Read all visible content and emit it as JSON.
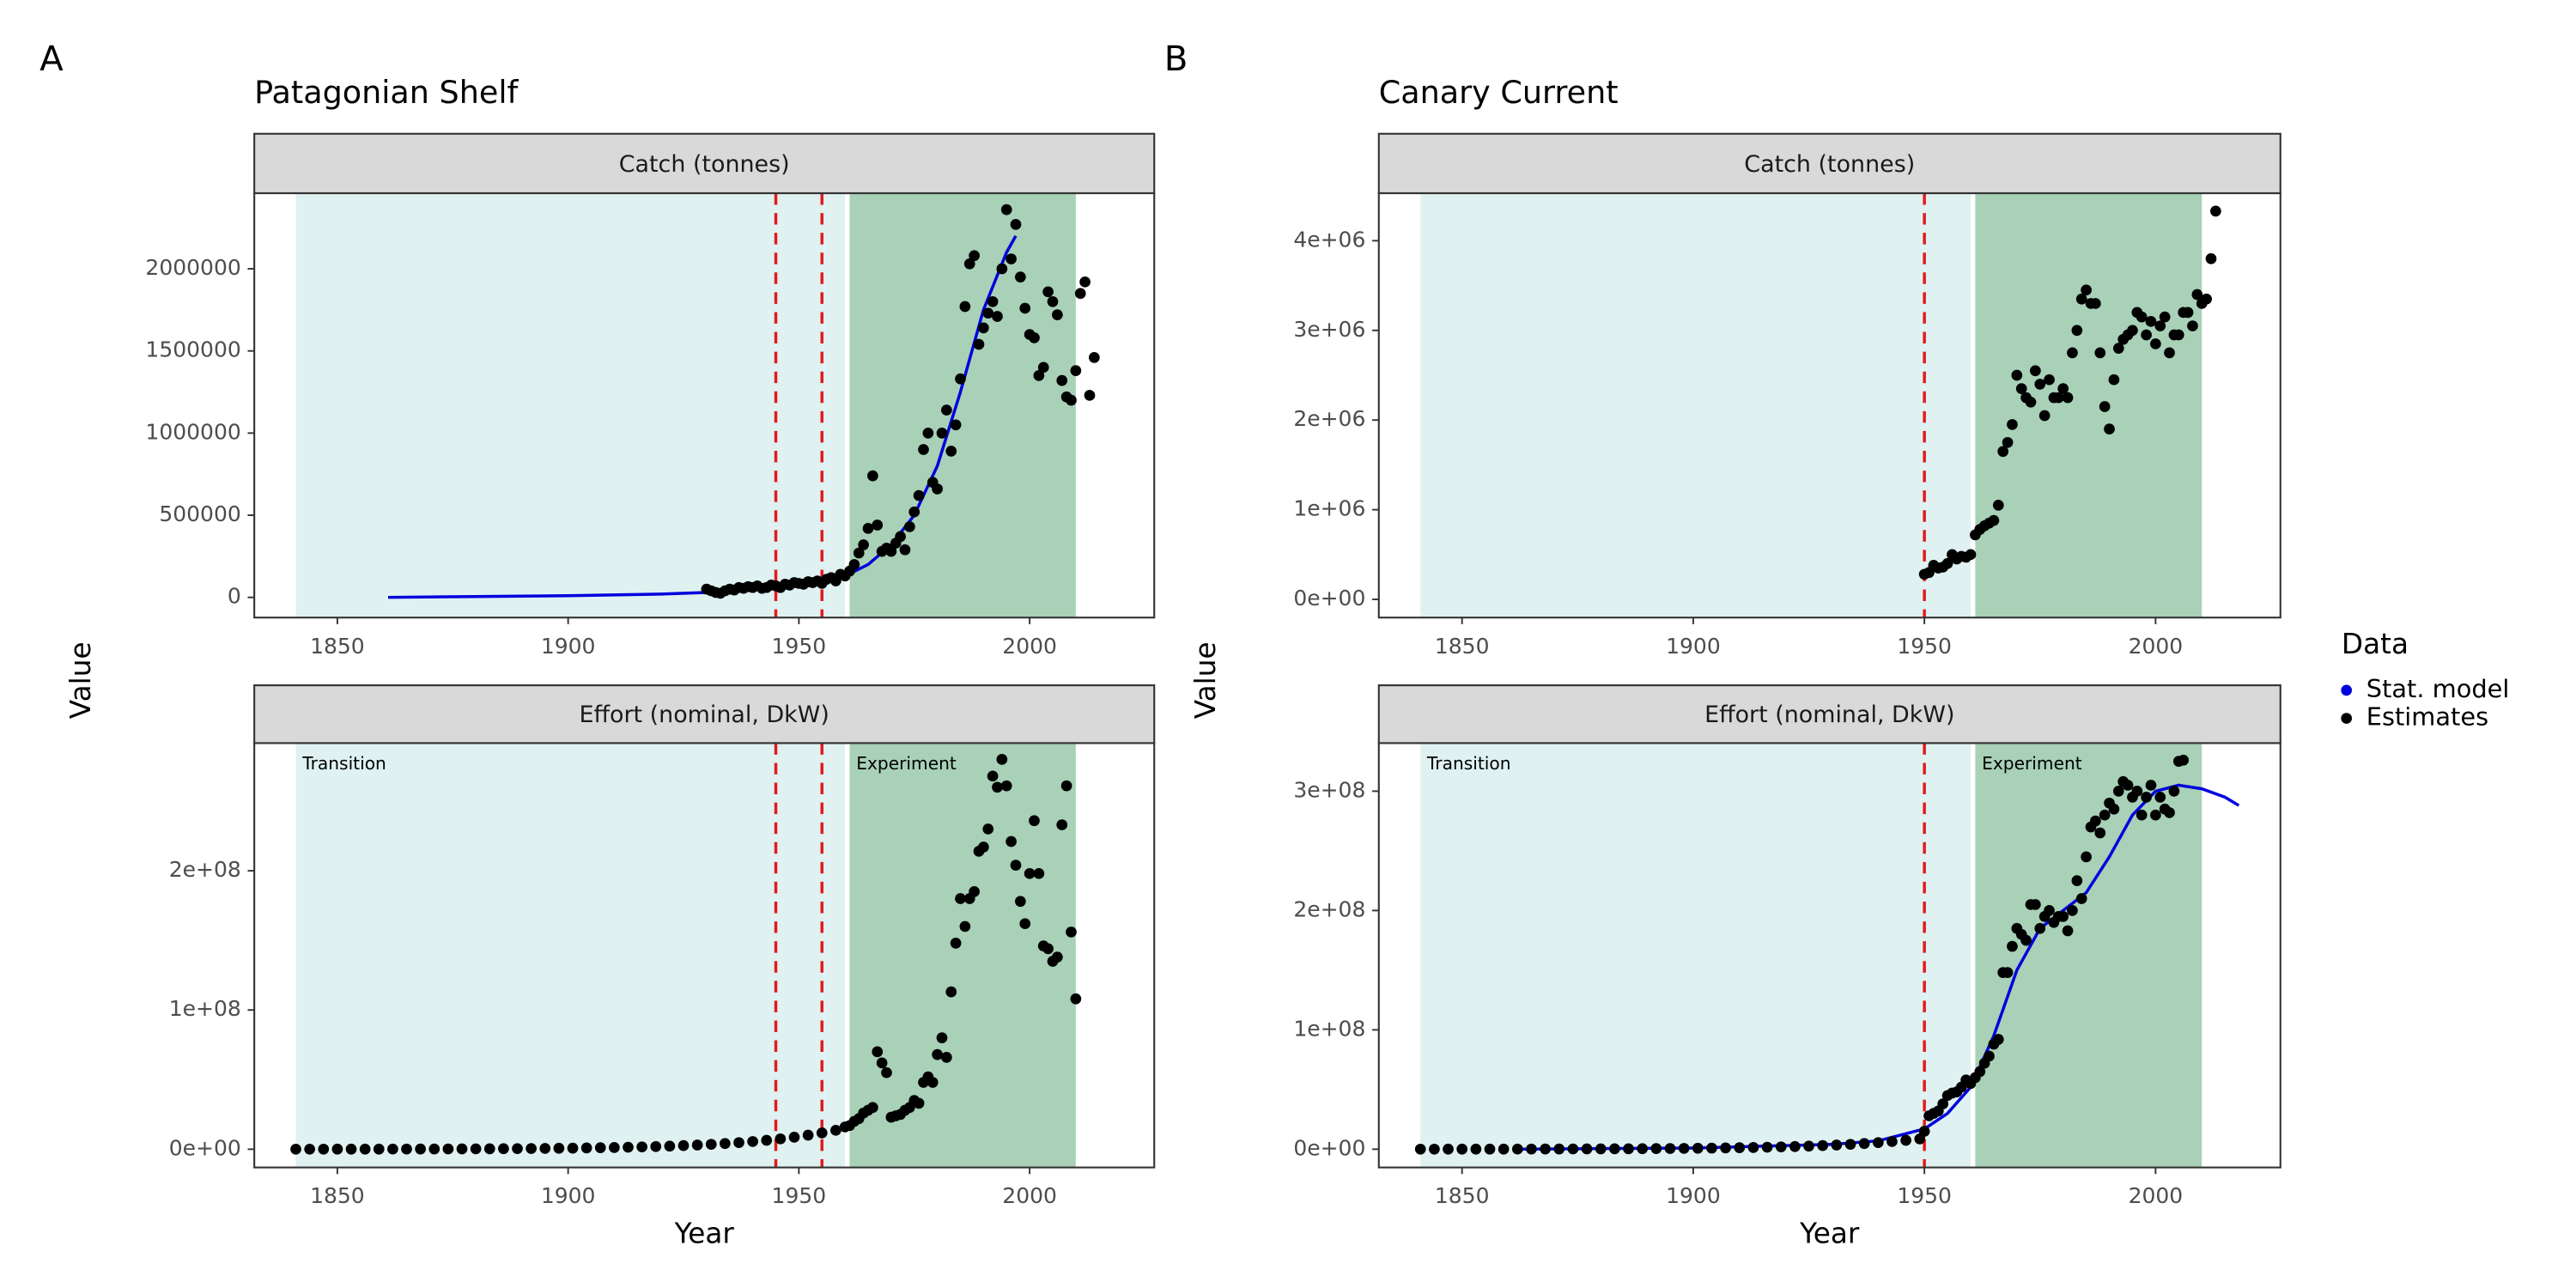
{
  "axis_labels": {
    "x": "Year",
    "y": "Value"
  },
  "legend": {
    "title": "Data",
    "entries": [
      {
        "name": "Stat. model",
        "color": "#0000dd"
      },
      {
        "name": "Estimates",
        "color": "#000000"
      }
    ]
  },
  "periods": [
    {
      "label": "Transition",
      "start": 1841,
      "end": 1960,
      "color": "#dff1f1"
    },
    {
      "label": "Experiment",
      "start": 1961,
      "end": 2010,
      "color": "#a8d1b7"
    }
  ],
  "vline_color": "#e31a1c",
  "chart_data": [
    {
      "type": "scatter",
      "panel": "A",
      "title": "Patagonian Shelf",
      "strip": "Catch (tonnes)",
      "xlim": [
        1832,
        2027
      ],
      "xticks": [
        1850,
        1900,
        1950,
        2000
      ],
      "ylim": [
        -123000,
        2460000
      ],
      "yticks": [
        0,
        500000,
        1000000,
        1500000,
        2000000
      ],
      "vlines": [
        1945,
        1955
      ],
      "model": {
        "x": [
          1861,
          1880,
          1900,
          1920,
          1930,
          1940,
          1950,
          1955,
          1960,
          1965,
          1970,
          1975,
          1980,
          1985,
          1990,
          1995,
          1997
        ],
        "values": [
          0,
          5000,
          10000,
          20000,
          30000,
          45000,
          70000,
          90000,
          130000,
          200000,
          320000,
          500000,
          800000,
          1250000,
          1750000,
          2100000,
          2200000
        ]
      },
      "estimates": {
        "x": [
          1930,
          1931,
          1932,
          1933,
          1934,
          1935,
          1936,
          1937,
          1938,
          1939,
          1940,
          1941,
          1942,
          1943,
          1944,
          1945,
          1946,
          1947,
          1948,
          1949,
          1950,
          1951,
          1952,
          1953,
          1954,
          1955,
          1956,
          1957,
          1958,
          1959,
          1960,
          1961,
          1962,
          1963,
          1964,
          1965,
          1966,
          1967,
          1968,
          1969,
          1970,
          1971,
          1972,
          1973,
          1974,
          1975,
          1976,
          1977,
          1978,
          1979,
          1980,
          1981,
          1982,
          1983,
          1984,
          1985,
          1986,
          1987,
          1988,
          1989,
          1990,
          1991,
          1992,
          1993,
          1994,
          1995,
          1996,
          1997,
          1998,
          1999,
          2000,
          2001,
          2002,
          2003,
          2004,
          2005,
          2006,
          2007,
          2008,
          2009,
          2010,
          2011,
          2012,
          2013,
          2014
        ],
        "values": [
          50000,
          40000,
          30000,
          25000,
          40000,
          50000,
          45000,
          60000,
          55000,
          65000,
          60000,
          70000,
          55000,
          60000,
          75000,
          70000,
          60000,
          80000,
          75000,
          90000,
          85000,
          80000,
          95000,
          90000,
          100000,
          85000,
          110000,
          120000,
          100000,
          140000,
          130000,
          160000,
          200000,
          270000,
          320000,
          420000,
          740000,
          440000,
          280000,
          300000,
          280000,
          330000,
          370000,
          290000,
          430000,
          520000,
          620000,
          900000,
          1000000,
          700000,
          660000,
          1000000,
          1140000,
          890000,
          1050000,
          1330000,
          1770000,
          2030000,
          2080000,
          1540000,
          1640000,
          1730000,
          1800000,
          1710000,
          2000000,
          2360000,
          2060000,
          2270000,
          1950000,
          1760000,
          1600000,
          1580000,
          1350000,
          1400000,
          1860000,
          1800000,
          1720000,
          1320000,
          1220000,
          1200000,
          1380000,
          1850000,
          1920000,
          1230000,
          1460000
        ]
      }
    },
    {
      "type": "scatter",
      "strip": "Effort (nominal, DkW)",
      "xlim": [
        1832,
        2027
      ],
      "xticks": [
        1850,
        1900,
        1950,
        2000
      ],
      "ylim": [
        -13100000,
        291700000
      ],
      "yticks": [
        {
          "value": 0,
          "label": "0e+00"
        },
        {
          "value": 100000000,
          "label": "1e+08"
        },
        {
          "value": 200000000,
          "label": "2e+08"
        }
      ],
      "vlines": [
        1945,
        1955
      ],
      "estimates": {
        "x": [
          1841,
          1844,
          1847,
          1850,
          1853,
          1856,
          1859,
          1862,
          1865,
          1868,
          1871,
          1874,
          1877,
          1880,
          1883,
          1886,
          1889,
          1892,
          1895,
          1898,
          1901,
          1904,
          1907,
          1910,
          1913,
          1916,
          1919,
          1922,
          1925,
          1928,
          1931,
          1934,
          1937,
          1940,
          1943,
          1946,
          1949,
          1952,
          1955,
          1958,
          1960,
          1961,
          1962,
          1963,
          1964,
          1965,
          1966,
          1967,
          1968,
          1969,
          1970,
          1971,
          1972,
          1973,
          1974,
          1975,
          1976,
          1977,
          1978,
          1979,
          1980,
          1981,
          1982,
          1983,
          1984,
          1985,
          1986,
          1987,
          1988,
          1989,
          1990,
          1991,
          1992,
          1993,
          1994,
          1995,
          1996,
          1997,
          1998,
          1999,
          2000,
          2001,
          2002,
          2003,
          2004,
          2005,
          2006,
          2007,
          2008,
          2009,
          2010
        ],
        "values": [
          39000,
          45000,
          53000,
          61000,
          71000,
          83000,
          96000,
          112000,
          130000,
          151000,
          175000,
          204000,
          236000,
          275000,
          319000,
          371000,
          431000,
          500000,
          582000,
          676000,
          785000,
          912000,
          1060000,
          1230000,
          1430000,
          1660000,
          1930000,
          2240000,
          2610000,
          3030000,
          3520000,
          4090000,
          4750000,
          5520000,
          6410000,
          7450000,
          8650000,
          10100000,
          11700000,
          13600000,
          16000000,
          17000000,
          20000000,
          22000000,
          26000000,
          28000000,
          30000000,
          70000000,
          62000000,
          55000000,
          23000000,
          24000000,
          25000000,
          28000000,
          30000000,
          35000000,
          33000000,
          48000000,
          52000000,
          48000000,
          68000000,
          80000000,
          66000000,
          113000000,
          148000000,
          180000000,
          160000000,
          180000000,
          185000000,
          214000000,
          217000000,
          230000000,
          268000000,
          260000000,
          280000000,
          261000000,
          221000000,
          204000000,
          178000000,
          162000000,
          198000000,
          236000000,
          198000000,
          146000000,
          144000000,
          135000000,
          138000000,
          233000000,
          261000000,
          156000000,
          108000000
        ]
      }
    },
    {
      "type": "scatter",
      "panel": "B",
      "title": "Canary Current",
      "strip": "Catch (tonnes)",
      "xlim": [
        1832,
        2027
      ],
      "xticks": [
        1850,
        1900,
        1950,
        2000
      ],
      "ylim": [
        -203000,
        4530000
      ],
      "yticks": [
        {
          "value": 0,
          "label": "0e+00"
        },
        {
          "value": 1000000,
          "label": "1e+06"
        },
        {
          "value": 2000000,
          "label": "2e+06"
        },
        {
          "value": 3000000,
          "label": "3e+06"
        },
        {
          "value": 4000000,
          "label": "4e+06"
        }
      ],
      "vlines": [
        1950
      ],
      "estimates": {
        "x": [
          1950,
          1951,
          1952,
          1953,
          1954,
          1955,
          1956,
          1957,
          1958,
          1959,
          1960,
          1961,
          1962,
          1963,
          1964,
          1965,
          1966,
          1967,
          1968,
          1969,
          1970,
          1971,
          1972,
          1973,
          1974,
          1975,
          1976,
          1977,
          1978,
          1979,
          1980,
          1981,
          1982,
          1983,
          1984,
          1985,
          1986,
          1987,
          1988,
          1989,
          1990,
          1991,
          1992,
          1993,
          1994,
          1995,
          1996,
          1997,
          1998,
          1999,
          2000,
          2001,
          2002,
          2003,
          2004,
          2005,
          2006,
          2007,
          2008,
          2009,
          2010,
          2011,
          2012,
          2013
        ],
        "values": [
          280000,
          300000,
          380000,
          350000,
          360000,
          400000,
          500000,
          450000,
          480000,
          470000,
          500000,
          720000,
          780000,
          820000,
          850000,
          880000,
          1050000,
          1650000,
          1750000,
          1950000,
          2500000,
          2350000,
          2250000,
          2200000,
          2550000,
          2400000,
          2050000,
          2450000,
          2250000,
          2250000,
          2350000,
          2250000,
          2750000,
          3000000,
          3350000,
          3450000,
          3300000,
          3300000,
          2750000,
          2150000,
          1900000,
          2450000,
          2800000,
          2900000,
          2950000,
          3000000,
          3200000,
          3150000,
          2950000,
          3100000,
          2850000,
          3050000,
          3150000,
          2750000,
          2950000,
          2950000,
          3200000,
          3200000,
          3050000,
          3400000,
          3300000,
          3350000,
          3800000,
          4330000
        ]
      }
    },
    {
      "type": "scatter",
      "strip": "Effort (nominal, DkW)",
      "xlim": [
        1832,
        2027
      ],
      "xticks": [
        1850,
        1900,
        1950,
        2000
      ],
      "ylim": [
        -15300000,
        340300000
      ],
      "yticks": [
        {
          "value": 0,
          "label": "0e+00"
        },
        {
          "value": 100000000,
          "label": "1e+08"
        },
        {
          "value": 200000000,
          "label": "2e+08"
        },
        {
          "value": 300000000,
          "label": "3e+08"
        }
      ],
      "vlines": [
        1950
      ],
      "model": {
        "x": [
          1861,
          1900,
          1930,
          1940,
          1950,
          1955,
          1960,
          1965,
          1970,
          1975,
          1980,
          1985,
          1990,
          1995,
          2000,
          2005,
          2010,
          2015,
          2018
        ],
        "values": [
          0,
          1000000,
          4000000,
          7000000,
          17000000,
          30000000,
          52000000,
          95000000,
          150000000,
          185000000,
          200000000,
          215000000,
          245000000,
          280000000,
          300000000,
          305000000,
          302000000,
          295000000,
          288000000
        ]
      },
      "estimates": {
        "x": [
          1841,
          1844,
          1847,
          1850,
          1853,
          1856,
          1859,
          1862,
          1865,
          1868,
          1871,
          1874,
          1877,
          1880,
          1883,
          1886,
          1889,
          1892,
          1895,
          1898,
          1901,
          1904,
          1907,
          1910,
          1913,
          1916,
          1919,
          1922,
          1925,
          1928,
          1931,
          1934,
          1937,
          1940,
          1943,
          1946,
          1949,
          1950,
          1951,
          1952,
          1953,
          1954,
          1955,
          1956,
          1957,
          1958,
          1959,
          1960,
          1961,
          1962,
          1963,
          1964,
          1965,
          1966,
          1967,
          1968,
          1969,
          1970,
          1971,
          1972,
          1973,
          1974,
          1975,
          1976,
          1977,
          1978,
          1979,
          1980,
          1981,
          1982,
          1983,
          1984,
          1985,
          1986,
          1987,
          1988,
          1989,
          1990,
          1991,
          1992,
          1993,
          1994,
          1995,
          1996,
          1997,
          1998,
          1999,
          2000,
          2001,
          2002,
          2003,
          2004,
          2005,
          2006
        ],
        "values": [
          39000,
          45000,
          53000,
          61000,
          71000,
          83000,
          96000,
          112000,
          130000,
          151000,
          175000,
          204000,
          236000,
          275000,
          319000,
          371000,
          431000,
          500000,
          582000,
          676000,
          785000,
          912000,
          1060000,
          1230000,
          1430000,
          1660000,
          1930000,
          2240000,
          2610000,
          3030000,
          3520000,
          4090000,
          4750000,
          5520000,
          6410000,
          7450000,
          8650000,
          15000000,
          28000000,
          30000000,
          32000000,
          38000000,
          45000000,
          47000000,
          48000000,
          52000000,
          58000000,
          55000000,
          60000000,
          65000000,
          72000000,
          78000000,
          88000000,
          92000000,
          148000000,
          148000000,
          170000000,
          185000000,
          180000000,
          175000000,
          205000000,
          205000000,
          185000000,
          195000000,
          200000000,
          190000000,
          195000000,
          195000000,
          183000000,
          200000000,
          225000000,
          210000000,
          245000000,
          270000000,
          275000000,
          265000000,
          280000000,
          290000000,
          285000000,
          300000000,
          308000000,
          305000000,
          295000000,
          300000000,
          280000000,
          295000000,
          305000000,
          280000000,
          295000000,
          285000000,
          282000000,
          300000000,
          325000000,
          326000000
        ]
      }
    }
  ]
}
